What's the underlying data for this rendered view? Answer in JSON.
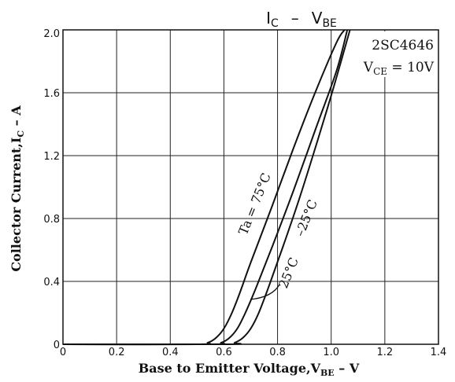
{
  "chart_data": {
    "type": "line",
    "title": {
      "main": "I",
      "main_sub": "C",
      "sep": "–",
      "second": "V",
      "second_sub": "BE"
    },
    "device": "2SC4646",
    "condition": {
      "prefix": "V",
      "sub": "CE",
      "suffix": " = 10V"
    },
    "xlabel": {
      "main": "Base to Emitter Voltage,V",
      "sub": "BE",
      "suffix": " – V"
    },
    "ylabel": {
      "main": "Collector Current,I",
      "sub": "C",
      "suffix": " – A"
    },
    "xlim": [
      0,
      1.4
    ],
    "ylim": [
      0,
      2.0
    ],
    "x_ticks": [
      0,
      0.2,
      0.4,
      0.6,
      0.8,
      1.0,
      1.2,
      1.4
    ],
    "x_tick_labels": [
      "0",
      "0.2",
      "0.4",
      "0.6",
      "0.8",
      "1.0",
      "1.2",
      "1.4"
    ],
    "y_ticks": [
      0,
      0.4,
      0.8,
      1.2,
      1.6,
      2.0
    ],
    "y_tick_labels": [
      "0",
      "0.4",
      "0.8",
      "1.2",
      "1.6",
      "2.0"
    ],
    "grid": true,
    "series": [
      {
        "name": "Ta = 75°C",
        "x": [
          0,
          0.5,
          0.54,
          0.57,
          0.6,
          0.63,
          0.66,
          0.7,
          0.78,
          0.86,
          0.94,
          1.02,
          1.05
        ],
        "y": [
          0,
          0,
          0.01,
          0.04,
          0.1,
          0.2,
          0.33,
          0.52,
          0.88,
          1.25,
          1.6,
          1.92,
          2.0
        ]
      },
      {
        "name": "25°C",
        "x": [
          0,
          0.55,
          0.59,
          0.62,
          0.65,
          0.68,
          0.72,
          0.78,
          0.86,
          0.94,
          1.02,
          1.06
        ],
        "y": [
          0,
          0,
          0.01,
          0.04,
          0.1,
          0.2,
          0.36,
          0.62,
          0.98,
          1.36,
          1.74,
          2.0
        ]
      },
      {
        "name": "–25°C",
        "x": [
          0,
          0.61,
          0.64,
          0.67,
          0.7,
          0.73,
          0.77,
          0.82,
          0.88,
          0.95,
          1.01,
          1.07
        ],
        "y": [
          0,
          0,
          0.01,
          0.04,
          0.1,
          0.2,
          0.38,
          0.62,
          0.92,
          1.3,
          1.64,
          2.0
        ]
      }
    ],
    "annotations": {
      "ta75": "Ta = 75°C",
      "t25": "25°C",
      "tm25": "–25°C"
    }
  }
}
